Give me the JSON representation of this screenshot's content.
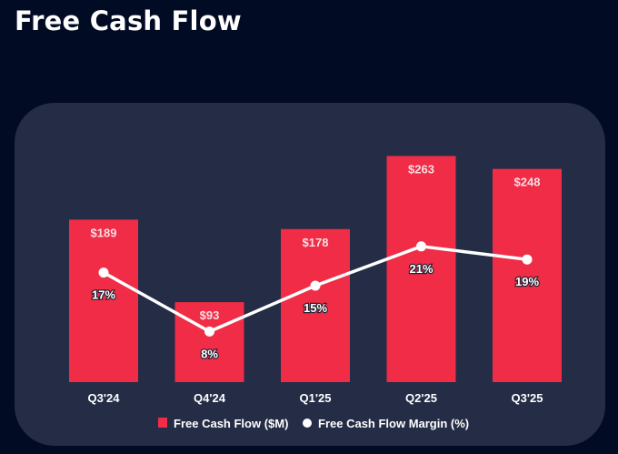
{
  "chart_data": {
    "type": "bar",
    "title": "Free Cash Flow",
    "xlabel": "",
    "ylabel": "",
    "categories": [
      "Q3'24",
      "Q4'24",
      "Q1'25",
      "Q2'25",
      "Q3'25"
    ],
    "series": [
      {
        "name": "Free Cash Flow ($M)",
        "type": "bar",
        "values": [
          189,
          93,
          178,
          263,
          248
        ],
        "labels": [
          "$189",
          "$93",
          "$178",
          "$263",
          "$248"
        ],
        "color": "#f02c46"
      },
      {
        "name": "Free Cash Flow Margin (%)",
        "type": "line",
        "values": [
          17,
          8,
          15,
          21,
          19
        ],
        "labels": [
          "17%",
          "8%",
          "15%",
          "21%",
          "19%"
        ],
        "color": "#ffffff"
      }
    ],
    "ylim_bar": [
      0,
      280
    ],
    "grid": false,
    "legend_position": "bottom"
  },
  "colors": {
    "background": "#020b24",
    "panel": "#252c45",
    "bar": "#f02c46",
    "line": "#ffffff"
  }
}
